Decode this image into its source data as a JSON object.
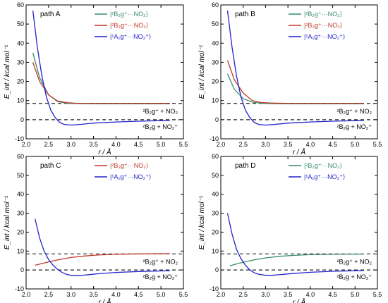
{
  "chart_data": [
    {
      "type": "line",
      "title": "path A",
      "xlabel": "r / Å",
      "ylabel": "E_int / kcal mol⁻¹",
      "xlim": [
        2.0,
        5.5
      ],
      "ylim": [
        -10,
        60
      ],
      "xticks": [
        "2.0",
        "2.5",
        "3.0",
        "3.5",
        "4.0",
        "4.5",
        "5.0",
        "5.5"
      ],
      "yticks": [
        "-10",
        "0",
        "10",
        "20",
        "30",
        "40",
        "50",
        "60"
      ],
      "hlines": [
        8.5,
        0
      ],
      "annotations": [
        "²B₂g⁺ + NO₂",
        "²B₂g + NO₂⁺"
      ],
      "legend": "top-right",
      "series": [
        {
          "name": "|²B₂g⁺···NO₂⟩",
          "color": "#3a8c68",
          "x": [
            2.15,
            2.3,
            2.5,
            2.7,
            2.9,
            3.1,
            3.5,
            4.0,
            4.5,
            5.0,
            5.2
          ],
          "values": [
            35,
            22,
            13,
            9.5,
            8.6,
            8.4,
            8.3,
            8.3,
            8.3,
            8.3,
            8.3
          ]
        },
        {
          "name": "|²B₃g⁺···NO₂⟩",
          "color": "#c0392b",
          "x": [
            2.15,
            2.3,
            2.5,
            2.7,
            2.9,
            3.1,
            3.5,
            4.0,
            4.5,
            5.0,
            5.2
          ],
          "values": [
            30,
            20,
            13,
            9.8,
            8.9,
            8.6,
            8.5,
            8.5,
            8.5,
            8.5,
            8.5
          ]
        },
        {
          "name": "|¹A₁g⁺···NO₂⁺⟩",
          "color": "#2222cc",
          "x": [
            2.15,
            2.25,
            2.35,
            2.45,
            2.55,
            2.65,
            2.75,
            2.85,
            3.0,
            3.2,
            3.5,
            4.0,
            4.5,
            5.0,
            5.2
          ],
          "values": [
            57,
            38,
            23,
            12,
            5,
            1,
            -1.5,
            -2.5,
            -2.8,
            -2.5,
            -1.8,
            -1.2,
            -0.8,
            -0.5,
            -0.4
          ]
        }
      ]
    },
    {
      "type": "line",
      "title": "path B",
      "xlabel": "r / Å",
      "ylabel": "E_int / kcal mol⁻¹",
      "xlim": [
        2.0,
        5.5
      ],
      "ylim": [
        -10,
        60
      ],
      "xticks": [
        "2.0",
        "2.5",
        "3.0",
        "3.5",
        "4.0",
        "4.5",
        "5.0",
        "5.5"
      ],
      "yticks": [
        "-10",
        "0",
        "10",
        "20",
        "30",
        "40",
        "50",
        "60"
      ],
      "hlines": [
        8.5,
        0
      ],
      "annotations": [
        "²B₂g⁺ + NO₂",
        "²B₂g + NO₂⁺"
      ],
      "legend": "top-right",
      "series": [
        {
          "name": "|²B₂g⁺···NO₂⟩",
          "color": "#3a8c68",
          "x": [
            2.15,
            2.3,
            2.5,
            2.7,
            2.9,
            3.1,
            3.5,
            4.0,
            4.5,
            5.0,
            5.2
          ],
          "values": [
            24,
            16,
            11,
            9.2,
            8.6,
            8.4,
            8.3,
            8.3,
            8.3,
            8.3,
            8.3
          ]
        },
        {
          "name": "|²B₃g⁺···NO₂⟩",
          "color": "#c0392b",
          "x": [
            2.15,
            2.3,
            2.5,
            2.7,
            2.9,
            3.1,
            3.5,
            4.0,
            4.5,
            5.0,
            5.2
          ],
          "values": [
            31,
            21,
            14,
            10,
            9,
            8.7,
            8.5,
            8.5,
            8.5,
            8.5,
            8.5
          ]
        },
        {
          "name": "|¹A₁g⁺···NO₂⁺⟩",
          "color": "#2222cc",
          "x": [
            2.15,
            2.25,
            2.35,
            2.45,
            2.55,
            2.65,
            2.75,
            2.85,
            3.0,
            3.2,
            3.5,
            4.0,
            4.5,
            5.0,
            5.2
          ],
          "values": [
            57,
            38,
            23,
            12,
            5,
            1,
            -1.5,
            -2.5,
            -2.8,
            -2.5,
            -1.8,
            -1.2,
            -0.8,
            -0.5,
            -0.4
          ]
        }
      ]
    },
    {
      "type": "line",
      "title": "path C",
      "xlabel": "r / Å",
      "ylabel": "E_int / kcal mol⁻¹",
      "xlim": [
        2.0,
        5.5
      ],
      "ylim": [
        -10,
        60
      ],
      "xticks": [
        "2.0",
        "2.5",
        "3.0",
        "3.5",
        "4.0",
        "4.5",
        "5.0",
        "5.5"
      ],
      "yticks": [
        "-10",
        "0",
        "10",
        "20",
        "30",
        "40",
        "50",
        "60"
      ],
      "hlines": [
        8.5,
        0
      ],
      "annotations": [
        "²B₂g⁺ + NO₂",
        "²B₂g + NO₂⁺"
      ],
      "legend": "top-right",
      "series": [
        {
          "name": "|²B₃g⁺···NO₂⟩",
          "color": "#c0392b",
          "x": [
            2.2,
            2.4,
            2.6,
            2.8,
            3.0,
            3.3,
            3.6,
            4.0,
            4.5,
            5.0,
            5.2
          ],
          "values": [
            2.5,
            3.7,
            4.8,
            5.8,
            6.6,
            7.4,
            7.9,
            8.3,
            8.5,
            8.6,
            8.6
          ]
        },
        {
          "name": "|¹A₁g⁺···NO₂⁺⟩",
          "color": "#2222cc",
          "x": [
            2.2,
            2.3,
            2.4,
            2.5,
            2.6,
            2.7,
            2.8,
            2.9,
            3.0,
            3.15,
            3.3,
            3.6,
            4.0,
            4.5,
            5.0,
            5.2
          ],
          "values": [
            27,
            17,
            10,
            5.5,
            2.5,
            0.3,
            -1.3,
            -2.3,
            -2.8,
            -3,
            -2.7,
            -2,
            -1.3,
            -0.8,
            -0.5,
            -0.4
          ]
        }
      ]
    },
    {
      "type": "line",
      "title": "path D",
      "xlabel": "r / Å",
      "ylabel": "E_int / kcal mol⁻¹",
      "xlim": [
        2.0,
        5.5
      ],
      "ylim": [
        -10,
        60
      ],
      "xticks": [
        "2.0",
        "2.5",
        "3.0",
        "3.5",
        "4.0",
        "4.5",
        "5.0",
        "5.5"
      ],
      "yticks": [
        "-10",
        "0",
        "10",
        "20",
        "30",
        "40",
        "50",
        "60"
      ],
      "hlines": [
        8.5,
        0
      ],
      "annotations": [
        "²B₂g⁺ + NO₂",
        "²B₂g + NO₂⁺"
      ],
      "legend": "top-right",
      "series": [
        {
          "name": "|²B₂g⁺···NO₂⟩",
          "color": "#3a8c68",
          "x": [
            2.2,
            2.4,
            2.6,
            2.8,
            3.0,
            3.3,
            3.6,
            4.0,
            4.5,
            5.0,
            5.2
          ],
          "values": [
            2.2,
            3.5,
            4.6,
            5.6,
            6.4,
            7.2,
            7.7,
            8.1,
            8.3,
            8.4,
            8.4
          ]
        },
        {
          "name": "|¹A₁g⁺···NO₂⁺⟩",
          "color": "#2222cc",
          "x": [
            2.15,
            2.25,
            2.35,
            2.45,
            2.55,
            2.65,
            2.75,
            2.85,
            3.0,
            3.15,
            3.3,
            3.6,
            4.0,
            4.5,
            5.0,
            5.2
          ],
          "values": [
            30,
            19,
            11,
            6,
            2.5,
            0,
            -1.5,
            -2.3,
            -2.8,
            -2.8,
            -2.5,
            -1.9,
            -1.2,
            -0.7,
            -0.4,
            -0.3
          ]
        }
      ]
    }
  ]
}
